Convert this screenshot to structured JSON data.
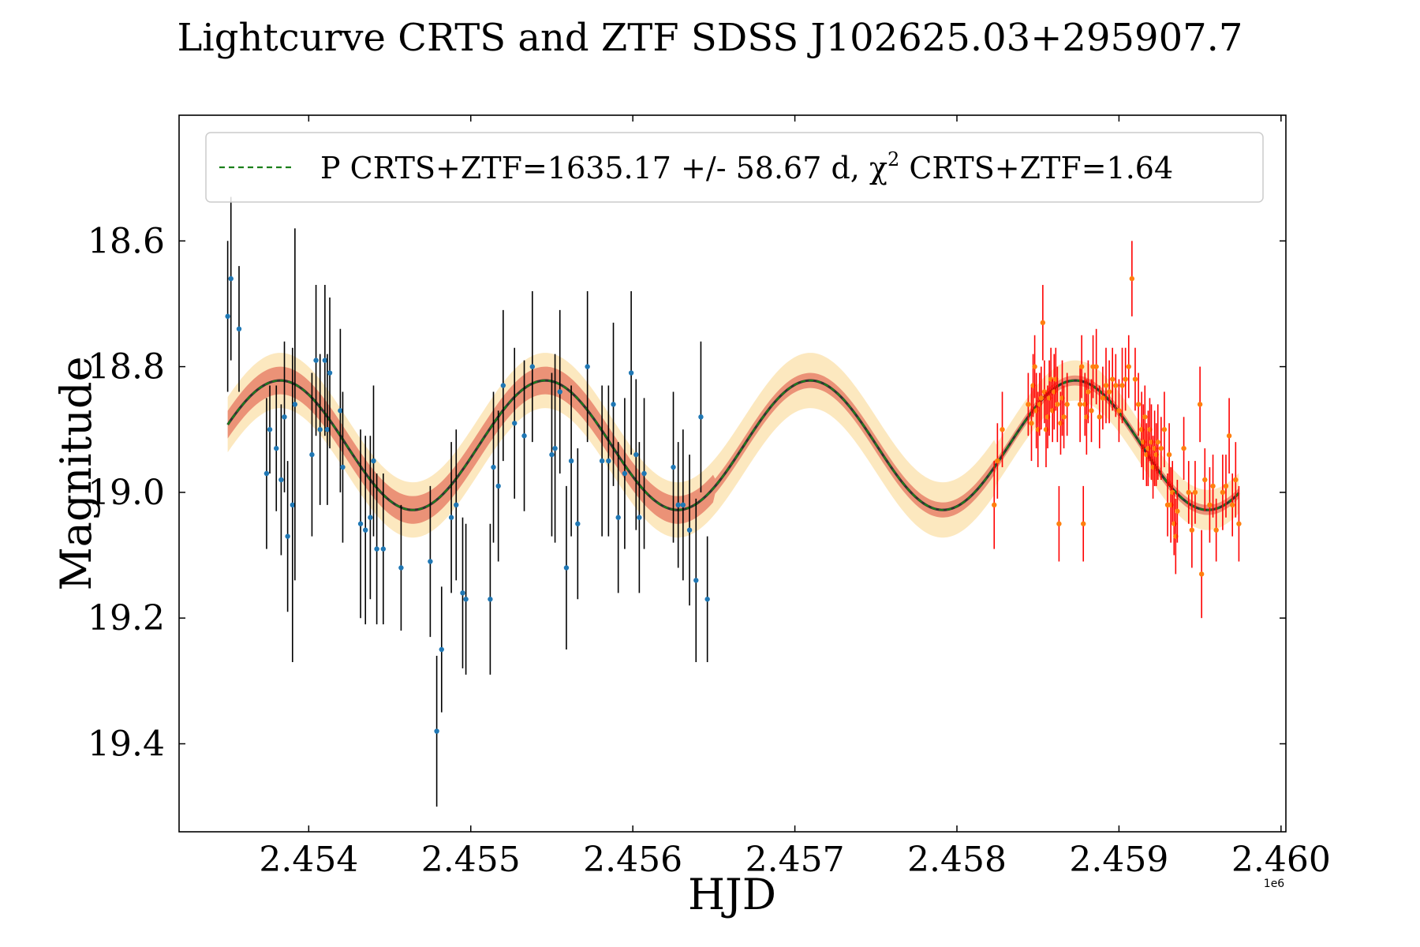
{
  "chart_data": {
    "type": "scatter",
    "title": "Lightcurve CRTS and ZTF SDSS J102625.03+295907.7",
    "xlabel": "HJD",
    "ylabel": "Magnitude",
    "x_offset_label": "1e6",
    "xlim": [
      2453200,
      2460030
    ],
    "ylim": [
      19.54,
      18.4
    ],
    "y_inverted": true,
    "x_ticks": [
      2454000,
      2455000,
      2456000,
      2457000,
      2458000,
      2459000,
      2460000
    ],
    "x_tick_labels": [
      "2.454",
      "2.455",
      "2.456",
      "2.457",
      "2.458",
      "2.459",
      "2.460"
    ],
    "y_ticks": [
      18.6,
      18.8,
      19.0,
      19.2,
      19.4
    ],
    "y_tick_labels": [
      "18.6",
      "18.8",
      "19.0",
      "19.2",
      "19.4"
    ],
    "grid": false,
    "legend": {
      "position": "top",
      "label": "P CRTS+ZTF=1635.17 +/- 58.67 d, χ",
      "label_sup": "2",
      "label_tail": " CRTS+ZTF=1.64"
    },
    "model": {
      "name": "P CRTS+ZTF=1635.17 +/- 58.67 d, χ2 CRTS+ZTF=1.64",
      "period": 1635.17,
      "mean": 18.925,
      "amplitude": 0.103,
      "peak_hjd": 2457095,
      "x_start": 2453500,
      "x_end": 2459740,
      "ztf_start": 2458230,
      "colors": {
        "line": "#1a7f1a",
        "inner_band": "#e8836a",
        "outer_band": "#fce5b8",
        "dark_edge": "#333333"
      }
    },
    "series": [
      {
        "name": "CRTS",
        "marker_color": "#1f77b4",
        "error_color": "#000000",
        "points": [
          [
            2453500,
            18.72,
            0.12
          ],
          [
            2453520,
            18.66,
            0.13
          ],
          [
            2453570,
            18.74,
            0.1
          ],
          [
            2453740,
            18.97,
            0.12
          ],
          [
            2453760,
            18.9,
            0.07
          ],
          [
            2453800,
            18.93,
            0.1
          ],
          [
            2453830,
            18.98,
            0.12
          ],
          [
            2453850,
            18.88,
            0.12
          ],
          [
            2453870,
            19.07,
            0.12
          ],
          [
            2453900,
            19.02,
            0.25
          ],
          [
            2453915,
            18.86,
            0.28
          ],
          [
            2454020,
            18.94,
            0.13
          ],
          [
            2454045,
            18.79,
            0.12
          ],
          [
            2454070,
            18.9,
            0.12
          ],
          [
            2454100,
            18.79,
            0.12
          ],
          [
            2454115,
            18.9,
            0.12
          ],
          [
            2454130,
            18.81,
            0.12
          ],
          [
            2454195,
            18.87,
            0.13
          ],
          [
            2454210,
            18.96,
            0.12
          ],
          [
            2454320,
            19.05,
            0.15
          ],
          [
            2454350,
            19.06,
            0.15
          ],
          [
            2454380,
            19.04,
            0.13
          ],
          [
            2454400,
            18.95,
            0.12
          ],
          [
            2454420,
            19.09,
            0.12
          ],
          [
            2454460,
            19.09,
            0.12
          ],
          [
            2454570,
            19.12,
            0.1
          ],
          [
            2454750,
            19.11,
            0.12
          ],
          [
            2454790,
            19.38,
            0.12
          ],
          [
            2454820,
            19.25,
            0.1
          ],
          [
            2454880,
            19.04,
            0.12
          ],
          [
            2454910,
            19.02,
            0.12
          ],
          [
            2454950,
            19.16,
            0.12
          ],
          [
            2454970,
            19.17,
            0.12
          ],
          [
            2455120,
            19.17,
            0.12
          ],
          [
            2455140,
            18.96,
            0.12
          ],
          [
            2455170,
            18.99,
            0.12
          ],
          [
            2455200,
            18.83,
            0.12
          ],
          [
            2455270,
            18.89,
            0.12
          ],
          [
            2455330,
            18.91,
            0.12
          ],
          [
            2455380,
            18.8,
            0.12
          ],
          [
            2455500,
            18.94,
            0.13
          ],
          [
            2455520,
            18.93,
            0.15
          ],
          [
            2455550,
            18.84,
            0.13
          ],
          [
            2455590,
            19.12,
            0.13
          ],
          [
            2455620,
            18.95,
            0.12
          ],
          [
            2455660,
            19.05,
            0.12
          ],
          [
            2455720,
            18.8,
            0.12
          ],
          [
            2455810,
            18.95,
            0.12
          ],
          [
            2455850,
            18.95,
            0.12
          ],
          [
            2455880,
            18.86,
            0.13
          ],
          [
            2455910,
            19.04,
            0.12
          ],
          [
            2455950,
            18.97,
            0.12
          ],
          [
            2455990,
            18.81,
            0.13
          ],
          [
            2456020,
            18.94,
            0.12
          ],
          [
            2456040,
            19.04,
            0.12
          ],
          [
            2456070,
            18.97,
            0.12
          ],
          [
            2456250,
            18.96,
            0.12
          ],
          [
            2456280,
            19.02,
            0.1
          ],
          [
            2456310,
            19.02,
            0.12
          ],
          [
            2456350,
            19.06,
            0.12
          ],
          [
            2456390,
            19.14,
            0.13
          ],
          [
            2456420,
            18.88,
            0.12
          ],
          [
            2456460,
            19.17,
            0.1
          ]
        ]
      },
      {
        "name": "ZTF",
        "marker_color": "#ff7f0e",
        "error_color": "#ff0000",
        "points": [
          [
            2458230,
            19.02,
            0.07
          ],
          [
            2458250,
            18.95,
            0.06
          ],
          [
            2458280,
            18.9,
            0.06
          ],
          [
            2458440,
            18.86,
            0.05
          ],
          [
            2458460,
            18.89,
            0.06
          ],
          [
            2458470,
            18.83,
            0.05
          ],
          [
            2458480,
            18.8,
            0.05
          ],
          [
            2458490,
            18.87,
            0.06
          ],
          [
            2458500,
            18.9,
            0.06
          ],
          [
            2458510,
            18.86,
            0.05
          ],
          [
            2458520,
            18.85,
            0.05
          ],
          [
            2458530,
            18.73,
            0.06
          ],
          [
            2458540,
            18.84,
            0.05
          ],
          [
            2458550,
            18.9,
            0.06
          ],
          [
            2458560,
            18.88,
            0.05
          ],
          [
            2458570,
            18.85,
            0.06
          ],
          [
            2458580,
            18.82,
            0.05
          ],
          [
            2458590,
            18.87,
            0.05
          ],
          [
            2458600,
            18.84,
            0.06
          ],
          [
            2458610,
            18.82,
            0.05
          ],
          [
            2458620,
            18.86,
            0.06
          ],
          [
            2458630,
            19.05,
            0.06
          ],
          [
            2458640,
            18.89,
            0.05
          ],
          [
            2458650,
            18.85,
            0.06
          ],
          [
            2458660,
            18.88,
            0.05
          ],
          [
            2458680,
            18.86,
            0.05
          ],
          [
            2458760,
            18.86,
            0.06
          ],
          [
            2458770,
            18.8,
            0.05
          ],
          [
            2458780,
            19.05,
            0.06
          ],
          [
            2458790,
            18.86,
            0.05
          ],
          [
            2458800,
            18.88,
            0.06
          ],
          [
            2458810,
            18.84,
            0.05
          ],
          [
            2458830,
            18.87,
            0.05
          ],
          [
            2458840,
            18.8,
            0.05
          ],
          [
            2458860,
            18.8,
            0.06
          ],
          [
            2458880,
            18.88,
            0.05
          ],
          [
            2458900,
            18.85,
            0.05
          ],
          [
            2458920,
            18.83,
            0.06
          ],
          [
            2458940,
            18.84,
            0.05
          ],
          [
            2458960,
            18.82,
            0.05
          ],
          [
            2458980,
            18.83,
            0.05
          ],
          [
            2459000,
            18.87,
            0.05
          ],
          [
            2459020,
            18.83,
            0.06
          ],
          [
            2459040,
            18.82,
            0.05
          ],
          [
            2459060,
            18.8,
            0.05
          ],
          [
            2459080,
            18.66,
            0.06
          ],
          [
            2459100,
            18.82,
            0.05
          ],
          [
            2459120,
            18.86,
            0.05
          ],
          [
            2459140,
            18.9,
            0.06
          ],
          [
            2459150,
            18.92,
            0.06
          ],
          [
            2459160,
            18.88,
            0.05
          ],
          [
            2459170,
            18.94,
            0.05
          ],
          [
            2459180,
            18.93,
            0.06
          ],
          [
            2459190,
            18.9,
            0.05
          ],
          [
            2459200,
            18.92,
            0.06
          ],
          [
            2459210,
            18.96,
            0.05
          ],
          [
            2459220,
            18.93,
            0.06
          ],
          [
            2459230,
            18.94,
            0.05
          ],
          [
            2459240,
            18.92,
            0.06
          ],
          [
            2459260,
            18.93,
            0.05
          ],
          [
            2459280,
            18.9,
            0.06
          ],
          [
            2459300,
            19.02,
            0.05
          ],
          [
            2459310,
            18.94,
            0.05
          ],
          [
            2459320,
            19.02,
            0.06
          ],
          [
            2459330,
            19.0,
            0.05
          ],
          [
            2459340,
            19.05,
            0.05
          ],
          [
            2459350,
            19.07,
            0.06
          ],
          [
            2459360,
            19.03,
            0.05
          ],
          [
            2459400,
            18.93,
            0.05
          ],
          [
            2459430,
            19.0,
            0.05
          ],
          [
            2459450,
            19.06,
            0.06
          ],
          [
            2459470,
            19.0,
            0.05
          ],
          [
            2459500,
            18.86,
            0.06
          ],
          [
            2459510,
            19.13,
            0.07
          ],
          [
            2459530,
            18.98,
            0.05
          ],
          [
            2459560,
            19.02,
            0.06
          ],
          [
            2459580,
            18.99,
            0.05
          ],
          [
            2459600,
            19.06,
            0.05
          ],
          [
            2459640,
            19.0,
            0.06
          ],
          [
            2459660,
            18.99,
            0.05
          ],
          [
            2459680,
            18.91,
            0.06
          ],
          [
            2459700,
            19.02,
            0.05
          ],
          [
            2459720,
            18.98,
            0.06
          ],
          [
            2459740,
            19.05,
            0.06
          ]
        ]
      }
    ]
  }
}
